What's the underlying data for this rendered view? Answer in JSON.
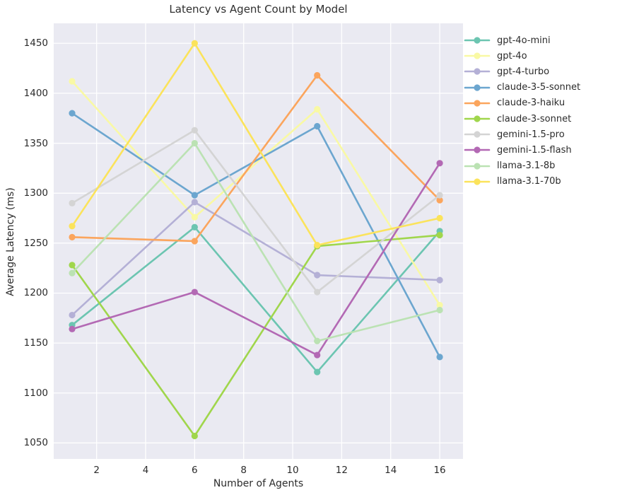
{
  "title": "Latency vs Agent Count by Model",
  "chart_data": {
    "type": "line",
    "title": "Latency vs Agent Count by Model",
    "xlabel": "Number of Agents",
    "ylabel": "Average Latency (ms)",
    "x": [
      1,
      6,
      11,
      16
    ],
    "series": [
      {
        "name": "gpt-4o-mini",
        "color": "#6cc5b1",
        "values": [
          1168,
          1266,
          1121,
          1262
        ]
      },
      {
        "name": "gpt-4o",
        "color": "#f9f9a4",
        "values": [
          1412,
          1276,
          1384,
          1188
        ]
      },
      {
        "name": "gpt-4-turbo",
        "color": "#b4b0d6",
        "values": [
          1178,
          1291,
          1218,
          1213
        ]
      },
      {
        "name": "claude-3-5-sonnet",
        "color": "#6ca6cf",
        "values": [
          1380,
          1298,
          1367,
          1136
        ]
      },
      {
        "name": "claude-3-haiku",
        "color": "#fba55d",
        "values": [
          1256,
          1252,
          1418,
          1293
        ]
      },
      {
        "name": "claude-3-sonnet",
        "color": "#a0d64c",
        "values": [
          1228,
          1057,
          1247,
          1258
        ]
      },
      {
        "name": "gemini-1.5-pro",
        "color": "#d4d4d4",
        "values": [
          1290,
          1363,
          1201,
          1298
        ]
      },
      {
        "name": "gemini-1.5-flash",
        "color": "#b369b4",
        "values": [
          1164,
          1201,
          1138,
          1330
        ]
      },
      {
        "name": "llama-3.1-8b",
        "color": "#bbe2b3",
        "values": [
          1220,
          1350,
          1152,
          1183
        ]
      },
      {
        "name": "llama-3.1-70b",
        "color": "#fbe35b",
        "values": [
          1267,
          1450,
          1248,
          1275
        ]
      }
    ],
    "xticks": [
      2,
      4,
      6,
      8,
      10,
      12,
      14,
      16
    ],
    "yticks": [
      1050,
      1100,
      1150,
      1200,
      1250,
      1300,
      1350,
      1400,
      1450
    ],
    "xlim": [
      0.25,
      16.95
    ],
    "ylim": [
      1034,
      1470
    ],
    "grid": true,
    "legend_position": "right-outside",
    "plot_bg": "#eaeaf2",
    "grid_color": "#ffffff",
    "text_color": "#2b2b2b"
  }
}
